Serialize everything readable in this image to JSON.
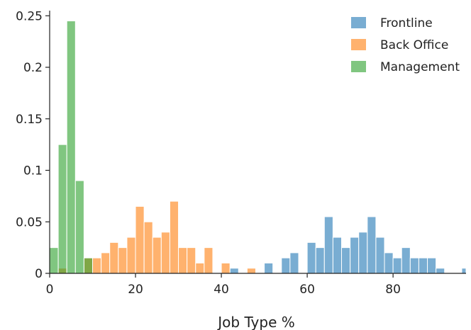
{
  "chart_data": {
    "type": "bar",
    "subtype": "overlapping histogram",
    "title": "",
    "xlabel": "Job Type %",
    "ylabel": "",
    "xlim": [
      0,
      97
    ],
    "ylim": [
      0,
      0.255
    ],
    "bin_width": 2,
    "x_ticks": [
      0,
      20,
      40,
      60,
      80
    ],
    "x_tick_labels": [
      "0",
      "20",
      "40",
      "60",
      "80"
    ],
    "y_ticks": [
      0,
      0.05,
      0.1,
      0.15,
      0.2,
      0.25
    ],
    "y_tick_labels": [
      "0",
      "0.05",
      "0.1",
      "0.15",
      "0.2",
      "0.25"
    ],
    "grid": false,
    "legend_position": "top-right",
    "opacity": 0.6,
    "series": [
      {
        "name": "Frontline",
        "color": "#1f77b4",
        "bin_starts": [
          42,
          50,
          54,
          56,
          60,
          62,
          64,
          66,
          68,
          70,
          72,
          74,
          76,
          78,
          80,
          82,
          84,
          86,
          88,
          90,
          96
        ],
        "values": [
          0.005,
          0.01,
          0.015,
          0.02,
          0.03,
          0.025,
          0.055,
          0.035,
          0.025,
          0.035,
          0.04,
          0.055,
          0.035,
          0.02,
          0.015,
          0.025,
          0.015,
          0.015,
          0.015,
          0.005,
          0.005
        ]
      },
      {
        "name": "Back Office",
        "color": "#ff7f0e",
        "bin_starts": [
          2,
          8,
          10,
          12,
          14,
          16,
          18,
          20,
          22,
          24,
          26,
          28,
          30,
          32,
          34,
          36,
          40,
          46
        ],
        "values": [
          0.005,
          0.015,
          0.015,
          0.02,
          0.03,
          0.025,
          0.035,
          0.065,
          0.05,
          0.035,
          0.04,
          0.07,
          0.025,
          0.025,
          0.01,
          0.025,
          0.01,
          0.005
        ]
      },
      {
        "name": "Management",
        "color": "#2ca02c",
        "bin_starts": [
          0,
          2,
          4,
          6,
          8
        ],
        "values": [
          0.025,
          0.125,
          0.245,
          0.09,
          0.015
        ]
      }
    ]
  }
}
